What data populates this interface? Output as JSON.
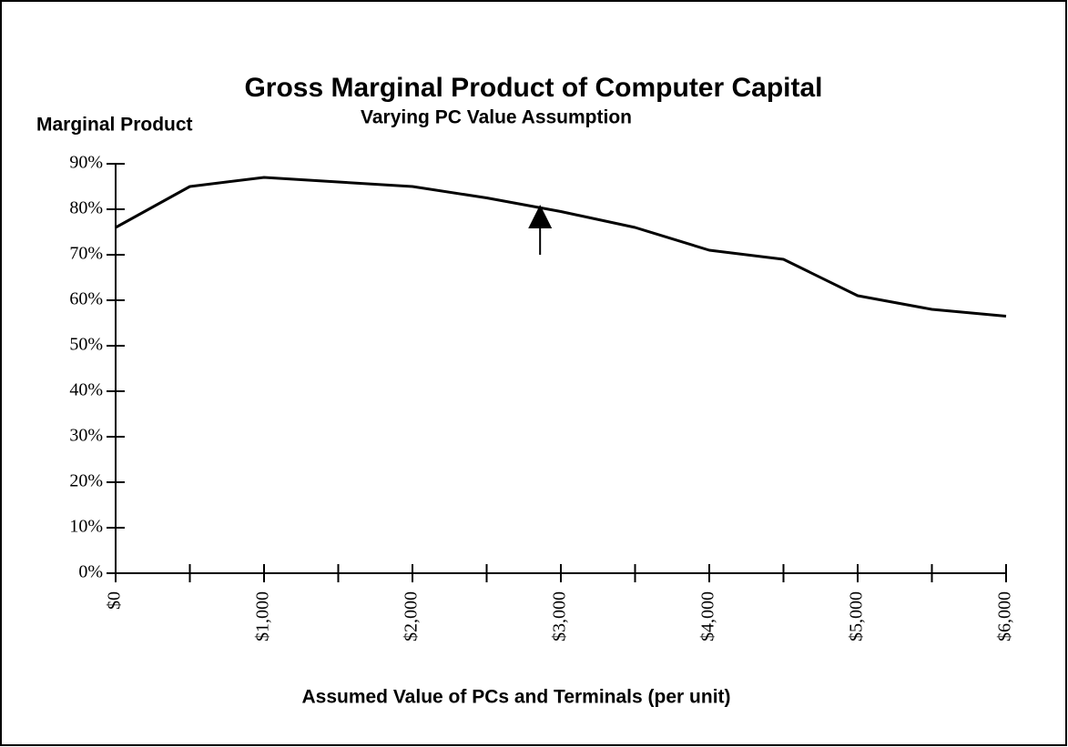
{
  "chart_data": {
    "type": "line",
    "title": "Gross Marginal Product of Computer Capital",
    "subtitle": "Varying PC Value Assumption",
    "y_label": "Marginal Product",
    "x_label": "Assumed Value of PCs and Terminals (per unit)",
    "x": [
      0,
      500,
      1000,
      1500,
      2000,
      2500,
      3000,
      3500,
      4000,
      4500,
      5000,
      5500,
      6000
    ],
    "series": [
      {
        "name": "Marginal Product",
        "color": "#000000",
        "values": [
          76,
          85,
          87,
          86,
          85,
          82.5,
          79.5,
          76,
          71,
          69,
          61,
          58,
          56.5
        ]
      }
    ],
    "xlim": [
      0,
      6000
    ],
    "xticks": [
      {
        "value": 0,
        "label": "$0"
      },
      {
        "value": 1000,
        "label": "$1,000"
      },
      {
        "value": 2000,
        "label": "$2,000"
      },
      {
        "value": 3000,
        "label": "$3,000"
      },
      {
        "value": 4000,
        "label": "$4,000"
      },
      {
        "value": 5000,
        "label": "$5,000"
      },
      {
        "value": 6000,
        "label": "$6,000"
      }
    ],
    "xminorticks": [
      500,
      1500,
      2500,
      3500,
      4500,
      5500
    ],
    "ylim": [
      0,
      90
    ],
    "yticks": [
      {
        "value": 0,
        "label": "0%"
      },
      {
        "value": 10,
        "label": "10%"
      },
      {
        "value": 20,
        "label": "20%"
      },
      {
        "value": 30,
        "label": "30%"
      },
      {
        "value": 40,
        "label": "40%"
      },
      {
        "value": 50,
        "label": "50%"
      },
      {
        "value": 60,
        "label": "60%"
      },
      {
        "value": 70,
        "label": "70%"
      },
      {
        "value": 80,
        "label": "80%"
      },
      {
        "value": 90,
        "label": "90%"
      }
    ],
    "arrow": {
      "x": 2860,
      "from": 70,
      "to": 81
    }
  }
}
